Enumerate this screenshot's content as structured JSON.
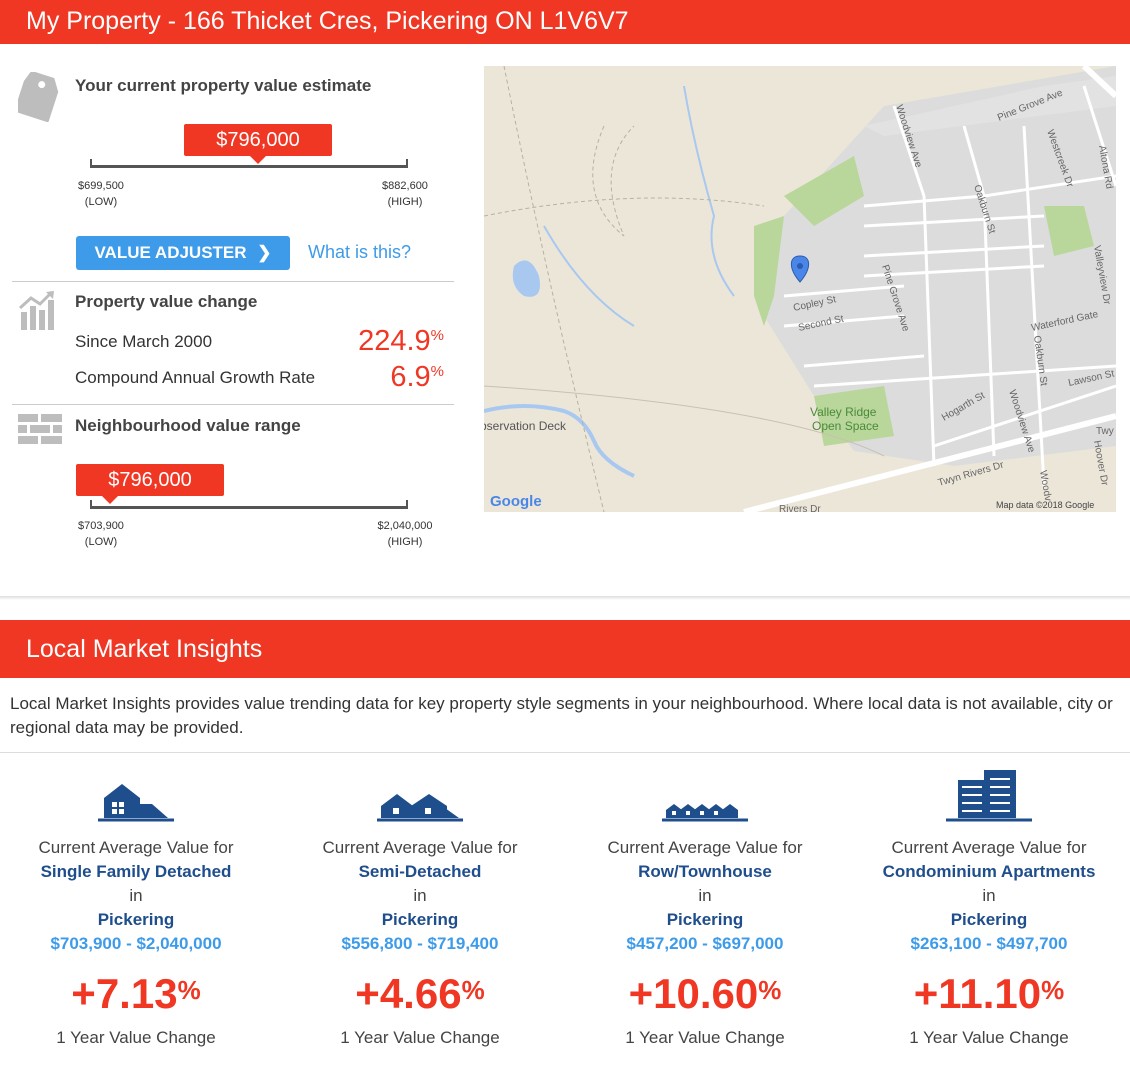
{
  "header": {
    "title": "My Property - 166 Thicket Cres, Pickering ON L1V6V7"
  },
  "estimate": {
    "title": "Your current property value estimate",
    "value": "$796,000",
    "low": "$699,500",
    "high": "$882,600",
    "low_label": "(LOW)",
    "high_label": "(HIGH)",
    "button_label": "VALUE ADJUSTER",
    "link_label": "What is this?"
  },
  "change": {
    "title": "Property value change",
    "since_label": "Since March 2000",
    "since_value": "224.9",
    "cagr_label": "Compound Annual Growth Rate",
    "cagr_value": "6.9",
    "unit": "%"
  },
  "neighbourhood": {
    "title": "Neighbourhood value range",
    "value": "$796,000",
    "low": "$703,900",
    "high": "$2,040,000",
    "low_label": "(LOW)",
    "high_label": "(HIGH)"
  },
  "map": {
    "streets": [
      "Pine Grove Ave",
      "Woodview Ave",
      "Westcreek Dr",
      "Altona Rd",
      "Oakburn St",
      "Copley St",
      "Second St",
      "Pine Grove Ave",
      "Valleyview Dr",
      "Waterford Gate",
      "Oakburn St",
      "Lawson St",
      "Hogarth St",
      "Woodview Ave",
      "Twyn Rivers Dr",
      "Hoover Dr",
      "Twy",
      "Woodv",
      "Rivers Dr"
    ],
    "park_label_1": "Valley Ridge",
    "park_label_2": "Open Space",
    "poi": "bservation Deck",
    "logo": "Google",
    "attribution": "Map data ©2018 Google"
  },
  "insights": {
    "title": "Local Market Insights",
    "intro": "Local Market Insights provides value trending data for key property style segments in your neighbourhood. Where local data is not available, city or regional data may be provided.",
    "items": [
      {
        "prefix": "Current Average Value for",
        "type": "Single Family Detached",
        "in": "in",
        "city": "Pickering",
        "range": "$703,900 - $2,040,000",
        "change": "+7.13",
        "unit": "%",
        "change_label": "1 Year Value Change",
        "icon": "detached-house-icon"
      },
      {
        "prefix": "Current Average Value for",
        "type": "Semi-Detached",
        "in": "in",
        "city": "Pickering",
        "range": "$556,800 - $719,400",
        "change": "+4.66",
        "unit": "%",
        "change_label": "1 Year Value Change",
        "icon": "semi-detached-icon"
      },
      {
        "prefix": "Current Average Value for",
        "type": "Row/Townhouse",
        "in": "in",
        "city": "Pickering",
        "range": "$457,200 - $697,000",
        "change": "+10.60",
        "unit": "%",
        "change_label": "1 Year Value Change",
        "icon": "townhouse-icon"
      },
      {
        "prefix": "Current Average Value for",
        "type": "Condominium Apartments",
        "in": "in",
        "city": "Pickering",
        "range": "$263,100 - $497,700",
        "change": "+11.10",
        "unit": "%",
        "change_label": "1 Year Value Change",
        "icon": "condo-building-icon"
      }
    ]
  },
  "colors": {
    "accent": "#ef3724",
    "link": "#3d9be9",
    "navy": "#1f4e8c"
  }
}
